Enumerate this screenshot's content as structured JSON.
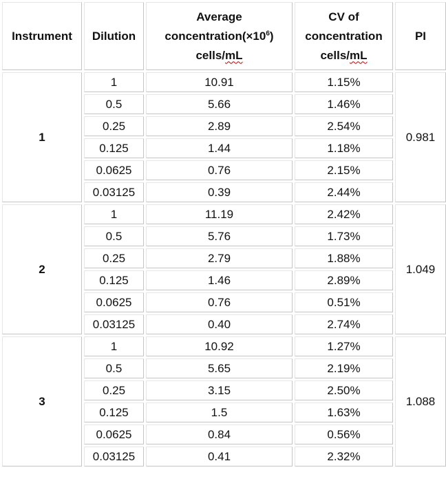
{
  "headers": {
    "instrument": "Instrument",
    "dilution": "Dilution",
    "avg_line1": "Average",
    "avg_line2_pre": "concentration(×10",
    "avg_line2_sup": "6",
    "avg_line2_post": ")",
    "avg_line3_pre": "cells/",
    "avg_line3_sq": "mL",
    "cv_line1": "CV of",
    "cv_line2": "concentration",
    "cv_line3_pre": "cells/",
    "cv_line3_sq": "mL",
    "pi": "PI"
  },
  "groups": [
    {
      "instrument": "1",
      "pi": "0.981",
      "rows": [
        {
          "dilution": "1",
          "avg": "10.91",
          "cv": "1.15%"
        },
        {
          "dilution": "0.5",
          "avg": "5.66",
          "cv": "1.46%"
        },
        {
          "dilution": "0.25",
          "avg": "2.89",
          "cv": "2.54%"
        },
        {
          "dilution": "0.125",
          "avg": "1.44",
          "cv": "1.18%"
        },
        {
          "dilution": "0.0625",
          "avg": "0.76",
          "cv": "2.15%"
        },
        {
          "dilution": "0.03125",
          "avg": "0.39",
          "cv": "2.44%"
        }
      ]
    },
    {
      "instrument": "2",
      "pi": "1.049",
      "rows": [
        {
          "dilution": "1",
          "avg": "11.19",
          "cv": "2.42%"
        },
        {
          "dilution": "0.5",
          "avg": "5.76",
          "cv": "1.73%"
        },
        {
          "dilution": "0.25",
          "avg": "2.79",
          "cv": "1.88%"
        },
        {
          "dilution": "0.125",
          "avg": "1.46",
          "cv": "2.89%"
        },
        {
          "dilution": "0.0625",
          "avg": "0.76",
          "cv": "0.51%"
        },
        {
          "dilution": "0.03125",
          "avg": "0.40",
          "cv": "2.74%"
        }
      ]
    },
    {
      "instrument": "3",
      "pi": "1.088",
      "rows": [
        {
          "dilution": "1",
          "avg": "10.92",
          "cv": "1.27%"
        },
        {
          "dilution": "0.5",
          "avg": "5.65",
          "cv": "2.19%"
        },
        {
          "dilution": "0.25",
          "avg": "3.15",
          "cv": "2.50%"
        },
        {
          "dilution": "0.125",
          "avg": "1.5",
          "cv": "1.63%"
        },
        {
          "dilution": "0.0625",
          "avg": "0.84",
          "cv": "0.56%"
        },
        {
          "dilution": "0.03125",
          "avg": "0.41",
          "cv": "2.32%"
        }
      ]
    }
  ]
}
